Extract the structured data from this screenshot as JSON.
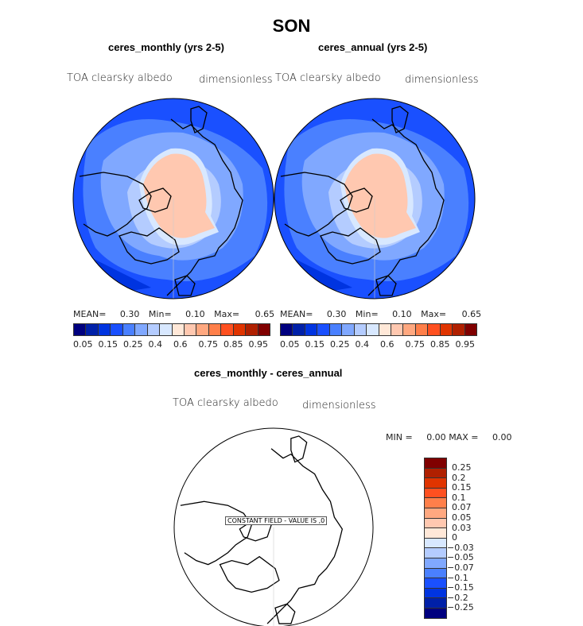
{
  "title": "SON",
  "panels": [
    {
      "subtitle": "ceres_monthly (yrs 2-5)",
      "variable": "TOA clearsky albedo",
      "units": "dimensionless",
      "stats": {
        "mean_label": "MEAN=",
        "mean": "0.30",
        "min_label": "Min=",
        "min": "0.10",
        "max_label": "Max=",
        "max": "0.65"
      }
    },
    {
      "subtitle": "ceres_annual (yrs 2-5)",
      "variable": "TOA clearsky albedo",
      "units": "dimensionless",
      "stats": {
        "mean_label": "MEAN=",
        "mean": "0.30",
        "min_label": "Min=",
        "min": "0.10",
        "max_label": "Max=",
        "max": "0.65"
      }
    }
  ],
  "colorbar": {
    "colors": [
      "#00007f",
      "#0020a8",
      "#0034e0",
      "#1a50ff",
      "#4a80ff",
      "#80a8ff",
      "#b4ccff",
      "#d8e8ff",
      "#ffe8d8",
      "#ffc8b0",
      "#ffa880",
      "#ff7f4a",
      "#ff5020",
      "#e03400",
      "#b02000",
      "#800000"
    ],
    "tick_labels": [
      "0.05",
      "0.15",
      "0.25",
      "0.4",
      "0.6",
      "0.75",
      "0.85",
      "0.95"
    ]
  },
  "diff": {
    "subtitle": "ceres_monthly - ceres_annual",
    "variable": "TOA clearsky albedo",
    "units": "dimensionless",
    "min_label": "MIN =",
    "min": "0.00",
    "max_label": "MAX =",
    "max": "0.00",
    "constant_text": "CONSTANT FIELD - VALUE IS ,0",
    "colorbar_labels": [
      "0.25",
      "0.2",
      "0.15",
      "0.1",
      "0.07",
      "0.05",
      "0.03",
      "0",
      "−0.03",
      "−0.05",
      "−0.07",
      "−0.1",
      "−0.15",
      "−0.2",
      "−0.25"
    ]
  }
}
